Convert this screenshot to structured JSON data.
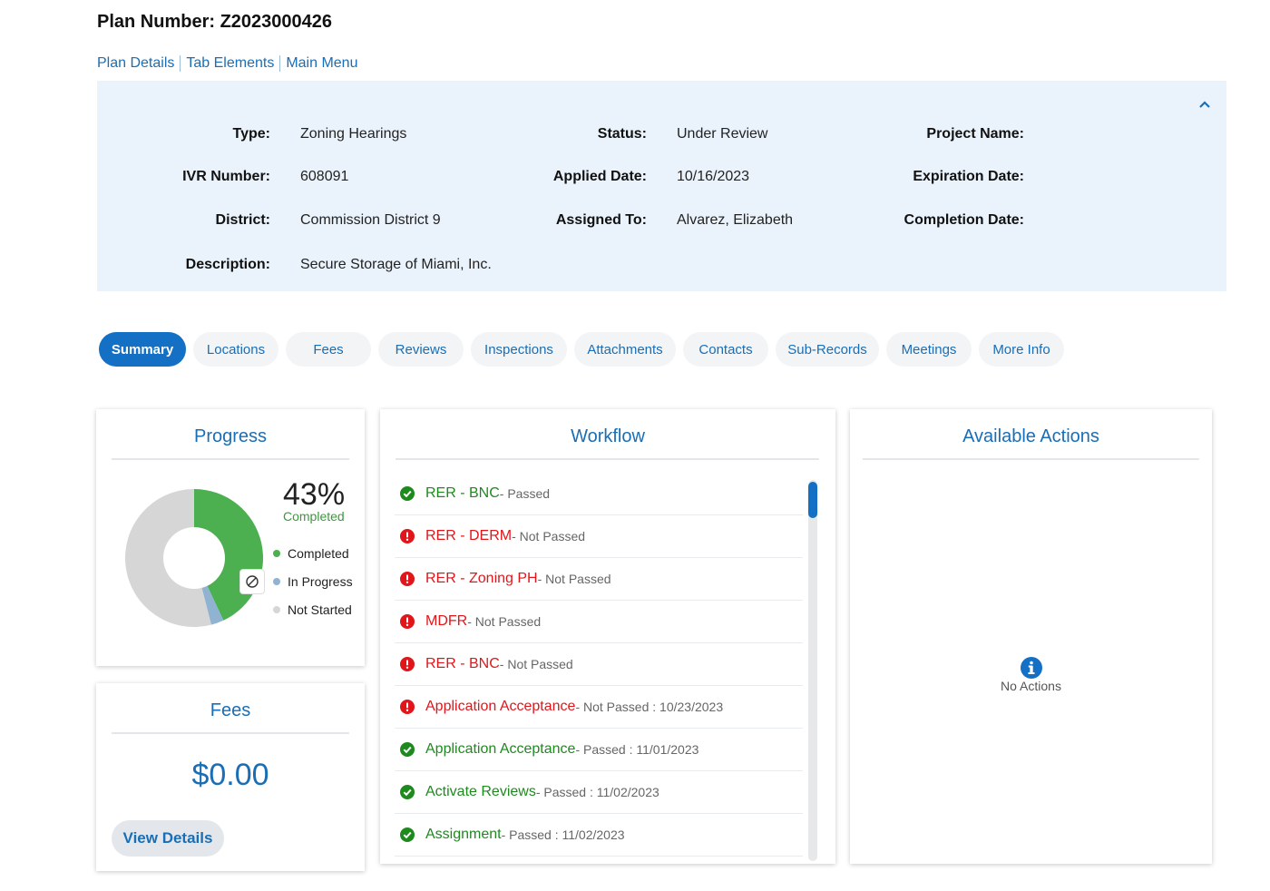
{
  "header": {
    "plan_number": "Plan Number: Z2023000426"
  },
  "links": {
    "plan_details": "Plan Details",
    "tab_elements": "Tab Elements",
    "main_menu": "Main Menu"
  },
  "details": {
    "type_label": "Type:",
    "type_value": "Zoning Hearings",
    "ivr_label": "IVR Number:",
    "ivr_value": "608091",
    "district_label": "District:",
    "district_value": "Commission District 9",
    "description_label": "Description:",
    "description_value": "Secure Storage of Miami, Inc.",
    "status_label": "Status:",
    "status_value": "Under Review",
    "applied_label": "Applied Date:",
    "applied_value": "10/16/2023",
    "assigned_label": "Assigned To:",
    "assigned_value": "Alvarez, Elizabeth",
    "project_label": "Project Name:",
    "expiration_label": "Expiration Date:",
    "completion_label": "Completion Date:"
  },
  "tabs": [
    "Summary",
    "Locations",
    "Fees",
    "Reviews",
    "Inspections",
    "Attachments",
    "Contacts",
    "Sub-Records",
    "Meetings",
    "More Info"
  ],
  "progress": {
    "title": "Progress",
    "percent_text": "43%",
    "completed_caption": "Completed",
    "legend": {
      "completed": "Completed",
      "in_progress": "In Progress",
      "not_started": "Not Started"
    },
    "fractions": {
      "completed": 0.43,
      "in_progress": 0.03,
      "not_started": 0.54
    },
    "colors": {
      "completed": "#4caf50",
      "in_progress": "#8fb3d1",
      "not_started": "#d6d6d6"
    }
  },
  "fees": {
    "title": "Fees",
    "amount": "$0.00",
    "view_details": "View Details"
  },
  "workflow": {
    "title": "Workflow",
    "items": [
      {
        "name": "RER - BNC",
        "status": " - Passed",
        "state": "ok"
      },
      {
        "name": "RER - DERM",
        "status": " - Not Passed",
        "state": "bad"
      },
      {
        "name": "RER - Zoning PH",
        "status": " - Not Passed",
        "state": "bad"
      },
      {
        "name": "MDFR",
        "status": " - Not Passed",
        "state": "bad"
      },
      {
        "name": "RER - BNC",
        "status": " - Not Passed",
        "state": "bad"
      },
      {
        "name": "Application Acceptance",
        "status": " - Not Passed : 10/23/2023",
        "state": "bad"
      },
      {
        "name": "Application Acceptance",
        "status": " - Passed : 11/01/2023",
        "state": "ok"
      },
      {
        "name": "Activate Reviews",
        "status": " - Passed : 11/02/2023",
        "state": "ok"
      },
      {
        "name": "Assignment",
        "status": " - Passed : 11/02/2023",
        "state": "ok"
      }
    ]
  },
  "actions": {
    "title": "Available Actions",
    "empty_text": "No Actions"
  }
}
